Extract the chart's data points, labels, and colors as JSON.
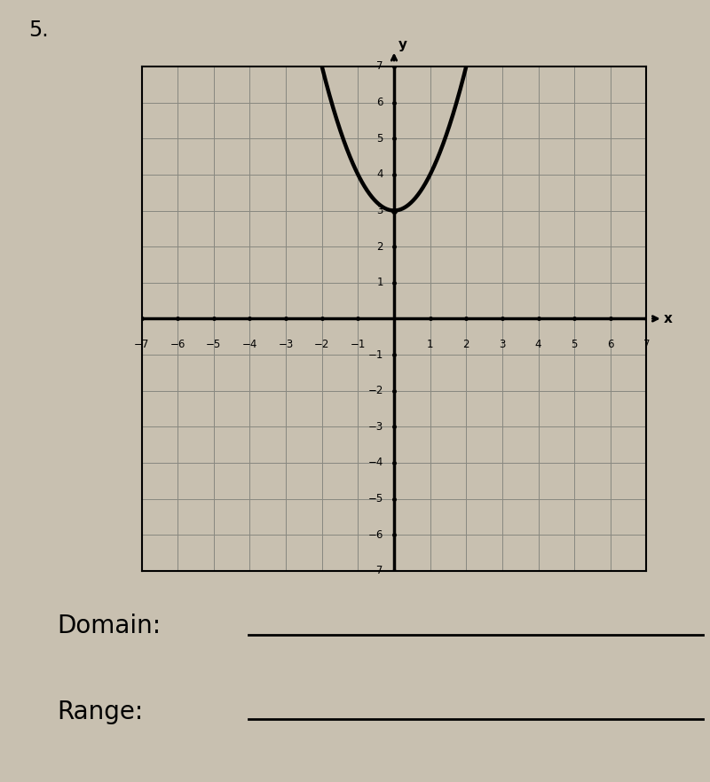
{
  "title_number": "5.",
  "background_color": "#c8c0b0",
  "graph_bg_color": "#c8c0b0",
  "grid_color": "#888880",
  "axis_color": "#000000",
  "curve_color": "#000000",
  "vertex": [
    0,
    3
  ],
  "xlim": [
    -7,
    7
  ],
  "ylim": [
    -7,
    7
  ],
  "xticks": [
    -7,
    -6,
    -5,
    -4,
    -3,
    -2,
    -1,
    1,
    2,
    3,
    4,
    5,
    6,
    7
  ],
  "yticks": [
    -7,
    -6,
    -5,
    -4,
    -3,
    -2,
    -1,
    1,
    2,
    3,
    4,
    5,
    6,
    7
  ],
  "xlabel": "x",
  "ylabel": "y",
  "domain_label": "Domain:",
  "range_label": "Range:",
  "line_width": 2.5,
  "curve_lw": 3.2,
  "figure_width": 8.0,
  "figure_height": 8.82
}
